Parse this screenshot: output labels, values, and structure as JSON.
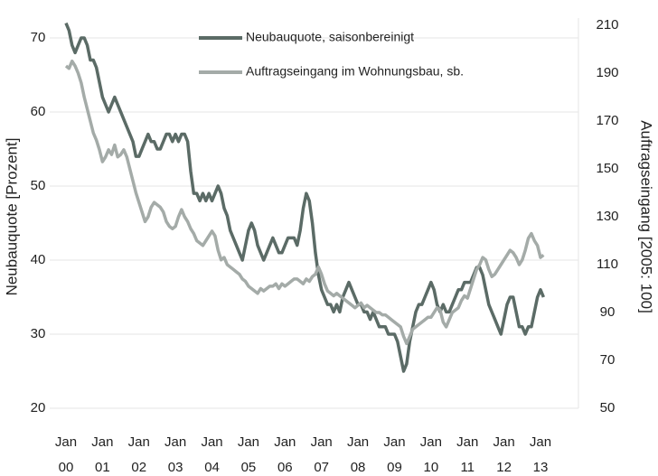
{
  "chart_data": {
    "type": "line",
    "y_label": "Neubauquote [Prozent]",
    "y2_label": "Auftragseingang [2005: 100]",
    "categories": [
      "Jan 00",
      null,
      null,
      null,
      null,
      null,
      null,
      null,
      null,
      null,
      null,
      null,
      "Jan 01",
      null,
      null,
      null,
      null,
      null,
      null,
      null,
      null,
      null,
      null,
      null,
      "Jan 02",
      null,
      null,
      null,
      null,
      null,
      null,
      null,
      null,
      null,
      null,
      null,
      "Jan 03",
      null,
      null,
      null,
      null,
      null,
      null,
      null,
      null,
      null,
      null,
      null,
      "Jan 04",
      null,
      null,
      null,
      null,
      null,
      null,
      null,
      null,
      null,
      null,
      null,
      "Jan 05",
      null,
      null,
      null,
      null,
      null,
      null,
      null,
      null,
      null,
      null,
      null,
      "Jan 06",
      null,
      null,
      null,
      null,
      null,
      null,
      null,
      null,
      null,
      null,
      null,
      "Jan 07",
      null,
      null,
      null,
      null,
      null,
      null,
      null,
      null,
      null,
      null,
      null,
      "Jan 08",
      null,
      null,
      null,
      null,
      null,
      null,
      null,
      null,
      null,
      null,
      null,
      "Jan 09",
      null,
      null,
      null,
      null,
      null,
      null,
      null,
      null,
      null,
      null,
      null,
      "Jan 10",
      null,
      null,
      null,
      null,
      null,
      null,
      null,
      null,
      null,
      null,
      null,
      "Jan 11",
      null,
      null,
      null,
      null,
      null,
      null,
      null,
      null,
      null,
      null,
      null,
      "Jan 12",
      null,
      null,
      null,
      null,
      null,
      null,
      null,
      null,
      null,
      null,
      null,
      "Jan 13",
      null
    ],
    "series": [
      {
        "name": "Neubauquote, saisonbereinigt",
        "color": "#5b6b66",
        "axis": "y",
        "values": [
          72,
          71,
          69,
          68,
          69,
          70,
          70,
          69,
          67,
          67,
          66,
          64,
          62,
          61,
          60,
          61,
          62,
          61,
          60,
          59,
          58,
          57,
          56,
          54,
          54,
          55,
          56,
          57,
          56,
          56,
          55,
          55,
          56,
          57,
          57,
          56,
          57,
          56,
          57,
          57,
          56,
          52,
          49,
          49,
          48,
          49,
          48,
          49,
          48,
          49,
          50,
          49,
          47,
          46,
          44,
          43,
          42,
          41,
          40,
          42,
          44,
          45,
          44,
          42,
          41,
          40,
          41,
          42,
          43,
          42,
          41,
          41,
          42,
          43,
          43,
          43,
          42,
          44,
          47,
          49,
          48,
          45,
          41,
          38,
          36,
          35,
          34,
          34,
          33,
          34,
          33,
          35,
          36,
          37,
          36,
          35,
          34,
          34,
          33,
          33,
          32,
          33,
          32,
          31,
          31,
          31,
          30,
          30,
          30,
          29,
          27,
          25,
          26,
          29,
          31,
          33,
          34,
          34,
          35,
          36,
          37,
          36,
          34,
          33,
          34,
          33,
          33,
          34,
          35,
          36,
          36,
          37,
          37,
          37,
          38,
          39,
          39,
          38,
          36,
          34,
          33,
          32,
          31,
          30,
          32,
          34,
          35,
          35,
          33,
          31,
          31,
          30,
          31,
          31,
          33,
          35,
          36,
          35
        ]
      },
      {
        "name": "Auftragseingang im Wohnungsbau, sb.",
        "color": "#a4aba8",
        "axis": "y2",
        "values": [
          193,
          192,
          195,
          193,
          190,
          186,
          180,
          175,
          170,
          165,
          162,
          158,
          153,
          155,
          158,
          156,
          160,
          155,
          156,
          158,
          155,
          150,
          145,
          140,
          136,
          132,
          128,
          130,
          134,
          136,
          135,
          134,
          132,
          128,
          126,
          125,
          126,
          130,
          133,
          130,
          128,
          125,
          123,
          120,
          119,
          118,
          120,
          122,
          124,
          122,
          116,
          112,
          113,
          110,
          109,
          108,
          107,
          106,
          104,
          103,
          101,
          100,
          99,
          98,
          100,
          99,
          100,
          101,
          101,
          102,
          100,
          102,
          101,
          102,
          103,
          104,
          104,
          103,
          102,
          104,
          103,
          105,
          106,
          109,
          106,
          102,
          99,
          98,
          97,
          98,
          97,
          96,
          95,
          94,
          93,
          92,
          93,
          94,
          92,
          93,
          92,
          91,
          90,
          90,
          89,
          89,
          88,
          87,
          86,
          85,
          84,
          80,
          77,
          80,
          83,
          84,
          85,
          86,
          87,
          88,
          88,
          90,
          92,
          91,
          86,
          84,
          87,
          90,
          91,
          92,
          95,
          97,
          96,
          100,
          104,
          108,
          110,
          113,
          112,
          108,
          105,
          106,
          108,
          110,
          112,
          114,
          116,
          115,
          113,
          110,
          112,
          116,
          121,
          123,
          120,
          118,
          113,
          114
        ]
      }
    ],
    "ylim": [
      20,
      71.7
    ],
    "yticks": [
      20,
      30,
      40,
      50,
      60,
      70
    ],
    "y2lim": [
      50,
      210
    ],
    "y2ticks": [
      50,
      70,
      90,
      110,
      130,
      150,
      170,
      190,
      210
    ],
    "grid": true,
    "legend": "upper center"
  }
}
